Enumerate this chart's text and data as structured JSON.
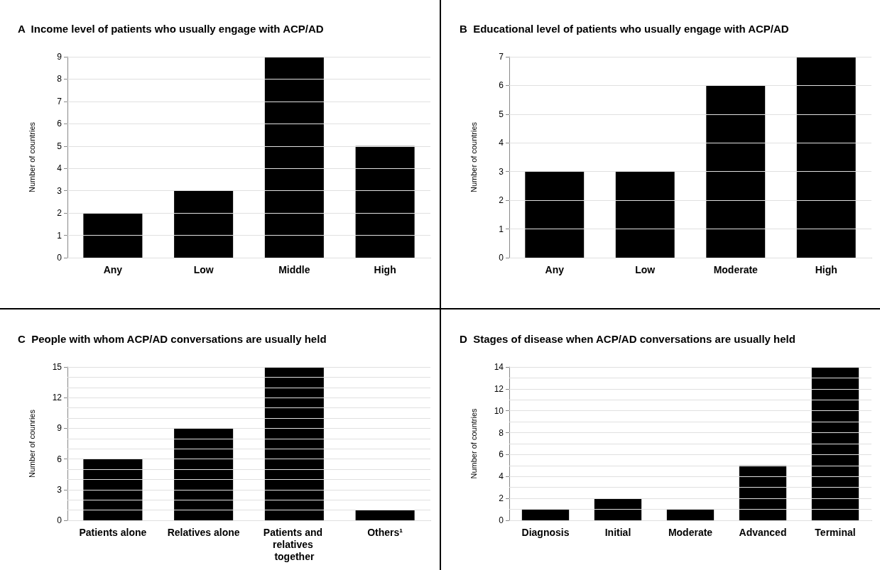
{
  "chart_data": [
    {
      "type": "bar",
      "title": "A  Income level of patients who usually engage with ACP/AD",
      "ylabel": "Number of countries",
      "categories": [
        "Any",
        "Low",
        "Middle",
        "High"
      ],
      "values": [
        2,
        3,
        9,
        5
      ],
      "color": "#000000",
      "ylim": [
        0,
        9
      ],
      "yticks": [
        0,
        1,
        2,
        3,
        4,
        5,
        6,
        7,
        8,
        9
      ],
      "grid": "y"
    },
    {
      "type": "bar",
      "title": "B  Educational level of patients who usually engage with ACP/AD",
      "ylabel": "Number of countries",
      "categories": [
        "Any",
        "Low",
        "Moderate",
        "High"
      ],
      "values": [
        3,
        3,
        6,
        7
      ],
      "color": "#000000",
      "ylim": [
        0,
        7
      ],
      "yticks": [
        0,
        1,
        2,
        3,
        4,
        5,
        6,
        7
      ],
      "grid": "y"
    },
    {
      "type": "bar",
      "title": "C  People with whom ACP/AD conversations are usually held",
      "ylabel": "Number of counries",
      "categories": [
        "Patients alone",
        "Relatives alone",
        "Patients and relatives together",
        "Others¹"
      ],
      "values": [
        6,
        9,
        15,
        1
      ],
      "color": "#000000",
      "ylim": [
        0,
        15
      ],
      "yticks": [
        0,
        {
          "value": 1,
          "label": null
        },
        {
          "value": 2,
          "label": null
        },
        3,
        {
          "value": 4,
          "label": null
        },
        {
          "value": 5,
          "label": null
        },
        6,
        {
          "value": 7,
          "label": null
        },
        {
          "value": 8,
          "label": null
        },
        9,
        {
          "value": 10,
          "label": null
        },
        {
          "value": 11,
          "label": null
        },
        12,
        {
          "value": 13,
          "label": null
        },
        {
          "value": 14,
          "label": null
        },
        15
      ],
      "grid": "y"
    },
    {
      "type": "bar",
      "title": "D  Stages of disease when ACP/AD conversations are usually held",
      "ylabel": "Number of countries",
      "categories": [
        "Diagnosis",
        "Initial",
        "Moderate",
        "Advanced",
        "Terminal"
      ],
      "values": [
        1,
        2,
        1,
        5,
        14
      ],
      "color": "#000000",
      "ylim": [
        0,
        14
      ],
      "yticks": [
        0,
        {
          "value": 1,
          "label": null
        },
        2,
        {
          "value": 3,
          "label": null
        },
        4,
        {
          "value": 5,
          "label": null
        },
        6,
        {
          "value": 7,
          "label": null
        },
        8,
        {
          "value": 9,
          "label": null
        },
        10,
        {
          "value": 11,
          "label": null
        },
        12,
        {
          "value": 13,
          "label": null
        },
        14
      ],
      "grid": "y"
    }
  ]
}
